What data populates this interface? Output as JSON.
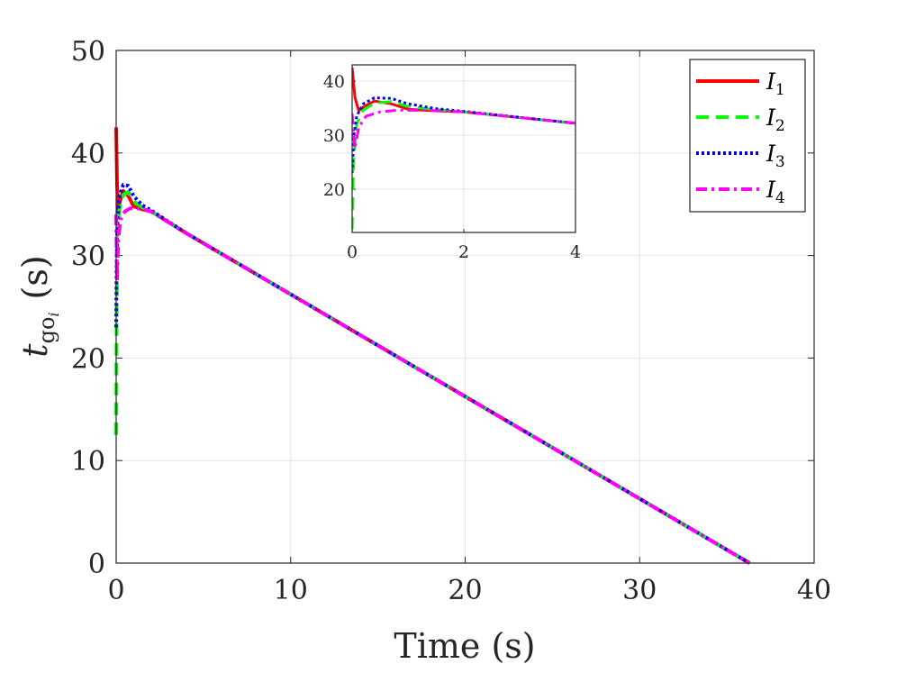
{
  "chart_data": {
    "type": "line",
    "xlabel": "Time (s)",
    "ylabel": "t_go_i (s)",
    "ylabel_parts": {
      "base": "t",
      "sub": "go",
      "subsub": "i",
      "unit": "(s)"
    },
    "xlim": [
      0,
      40
    ],
    "ylim": [
      0,
      50
    ],
    "xticks": [
      "0",
      "10",
      "20",
      "30",
      "40"
    ],
    "yticks": [
      "0",
      "10",
      "20",
      "30",
      "40",
      "50"
    ],
    "grid": true,
    "legend_position": "top-right",
    "series": [
      {
        "name": "I1",
        "label_base": "I",
        "label_sub": "1",
        "color": "#ff0000",
        "dash": "solid",
        "x": [
          0,
          0.05,
          0.12,
          0.2,
          0.4,
          0.7,
          1.0,
          1.5,
          2,
          4,
          36.3
        ],
        "y": [
          42.5,
          37,
          34.5,
          35.2,
          36.3,
          35.8,
          34.8,
          34.5,
          34.3,
          32.2,
          0
        ]
      },
      {
        "name": "I2",
        "label_base": "I",
        "label_sub": "2",
        "color": "#00ff00",
        "dash": "dashed",
        "x": [
          0,
          0.03,
          0.08,
          0.2,
          0.4,
          0.7,
          1.0,
          1.5,
          2,
          4,
          36.3
        ],
        "y": [
          12.5,
          26,
          32,
          34.6,
          35.9,
          36.2,
          35.3,
          34.7,
          34.3,
          32.2,
          0
        ]
      },
      {
        "name": "I3",
        "label_base": "I",
        "label_sub": "3",
        "color": "#0000ff",
        "dash": "dotted",
        "x": [
          0,
          0.03,
          0.08,
          0.2,
          0.4,
          0.7,
          1.0,
          1.5,
          2,
          4,
          36.3
        ],
        "y": [
          23,
          30,
          33.5,
          35.8,
          36.9,
          36.8,
          35.8,
          34.9,
          34.4,
          32.2,
          0
        ]
      },
      {
        "name": "I4",
        "label_base": "I",
        "label_sub": "4",
        "color": "#ff00ff",
        "dash": "dashdot",
        "x": [
          0,
          0.05,
          0.12,
          0.25,
          0.5,
          0.8,
          1.2,
          1.6,
          2,
          4,
          36.3
        ],
        "y": [
          34,
          27.5,
          31.5,
          33.5,
          34.3,
          34.6,
          34.6,
          34.5,
          34.3,
          32.2,
          0
        ]
      }
    ],
    "inset": {
      "xlim": [
        0,
        4
      ],
      "ylim": [
        12,
        43
      ],
      "xticks": [
        "0",
        "2",
        "4"
      ],
      "yticks": [
        "20",
        "30",
        "40"
      ],
      "grid": true
    }
  }
}
